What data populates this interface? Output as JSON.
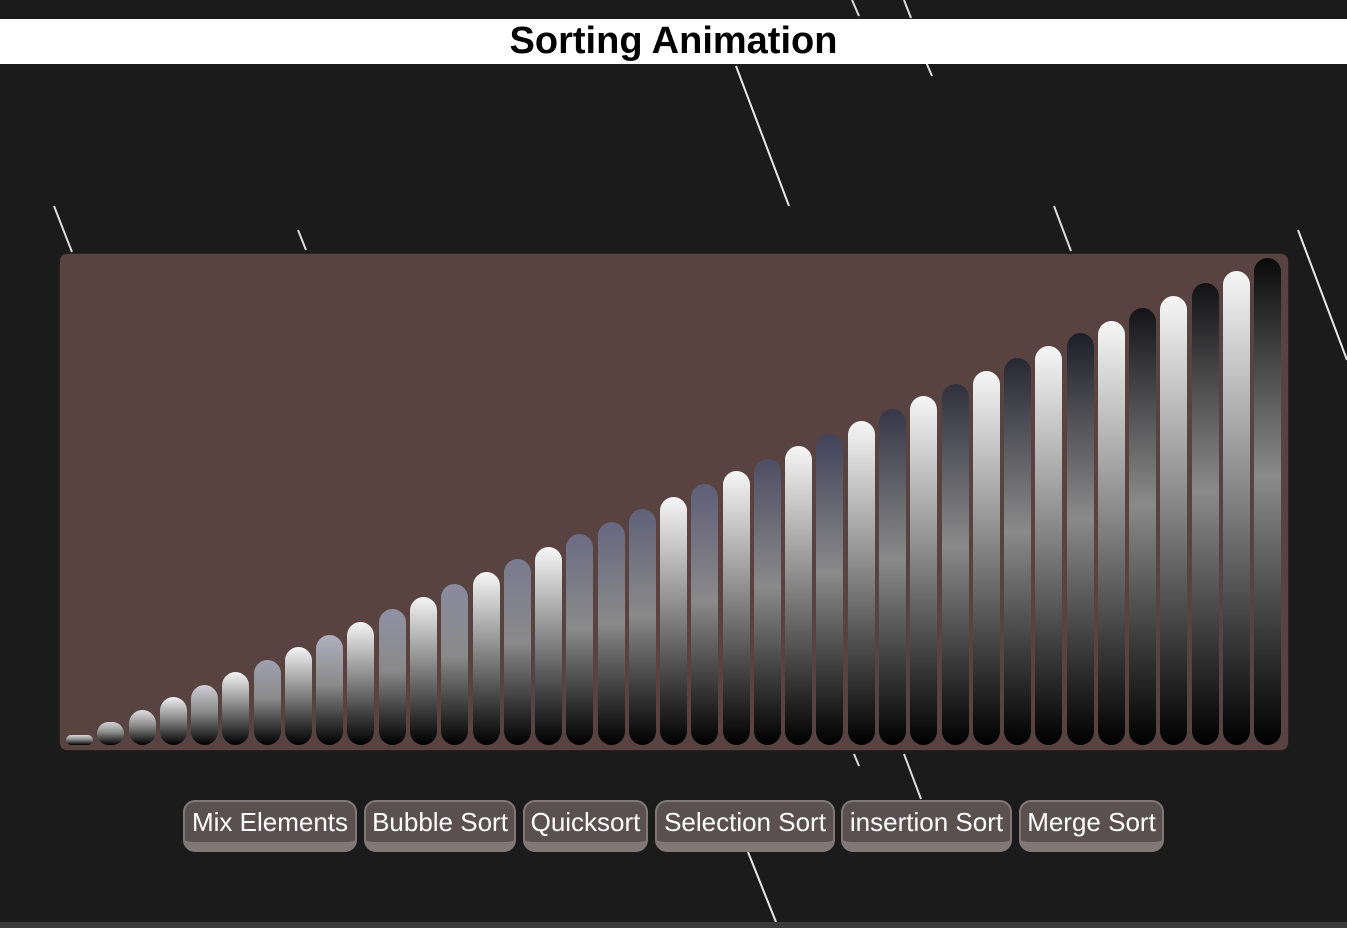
{
  "header": {
    "title": "Sorting Animation"
  },
  "buttons": {
    "mix": "Mix Elements",
    "bubble": "Bubble Sort",
    "quick": "Quicksort",
    "selection": "Selection Sort",
    "insertion": "insertion Sort",
    "merge": "Merge Sort"
  },
  "colors": {
    "page_background": "#1b1b1b",
    "stage_background": "#584340",
    "button_background": "#5a5050",
    "button_border": "#807878"
  },
  "bars": {
    "values": [
      1,
      2,
      3,
      4,
      5,
      6,
      7,
      8,
      9,
      10,
      11,
      12,
      13,
      14,
      15,
      16,
      17,
      18,
      19,
      20,
      21,
      22,
      23,
      24,
      25,
      26,
      27,
      28,
      29,
      30,
      31,
      32,
      33,
      34,
      35,
      36,
      37,
      38,
      39
    ],
    "top_colors": [
      "#d8d8dc",
      "#d4d4d8",
      "#e0e0e4",
      "#f0f0f0",
      "#cfcfd4",
      "#f4f4f4",
      "#a0a0b0",
      "#f4f4f4",
      "#b0b0bf",
      "#f4f4f4",
      "#9090a4",
      "#f4f4f4",
      "#8a8a9e",
      "#f6f6f6",
      "#7a7a90",
      "#f6f6f6",
      "#6c6c84",
      "#666680",
      "#606078",
      "#f6f6f6",
      "#5e5e78",
      "#f6f6f6",
      "#4e4e64",
      "#f6f6f6",
      "#42425a",
      "#f6f6f6",
      "#363648",
      "#f6f6f6",
      "#30303e",
      "#f6f6f6",
      "#282834",
      "#f6f6f6",
      "#1e1e28",
      "#f6f6f6",
      "#141418",
      "#f6f6f6",
      "#121214",
      "#f6f6f6",
      "#0a0a0a"
    ]
  }
}
